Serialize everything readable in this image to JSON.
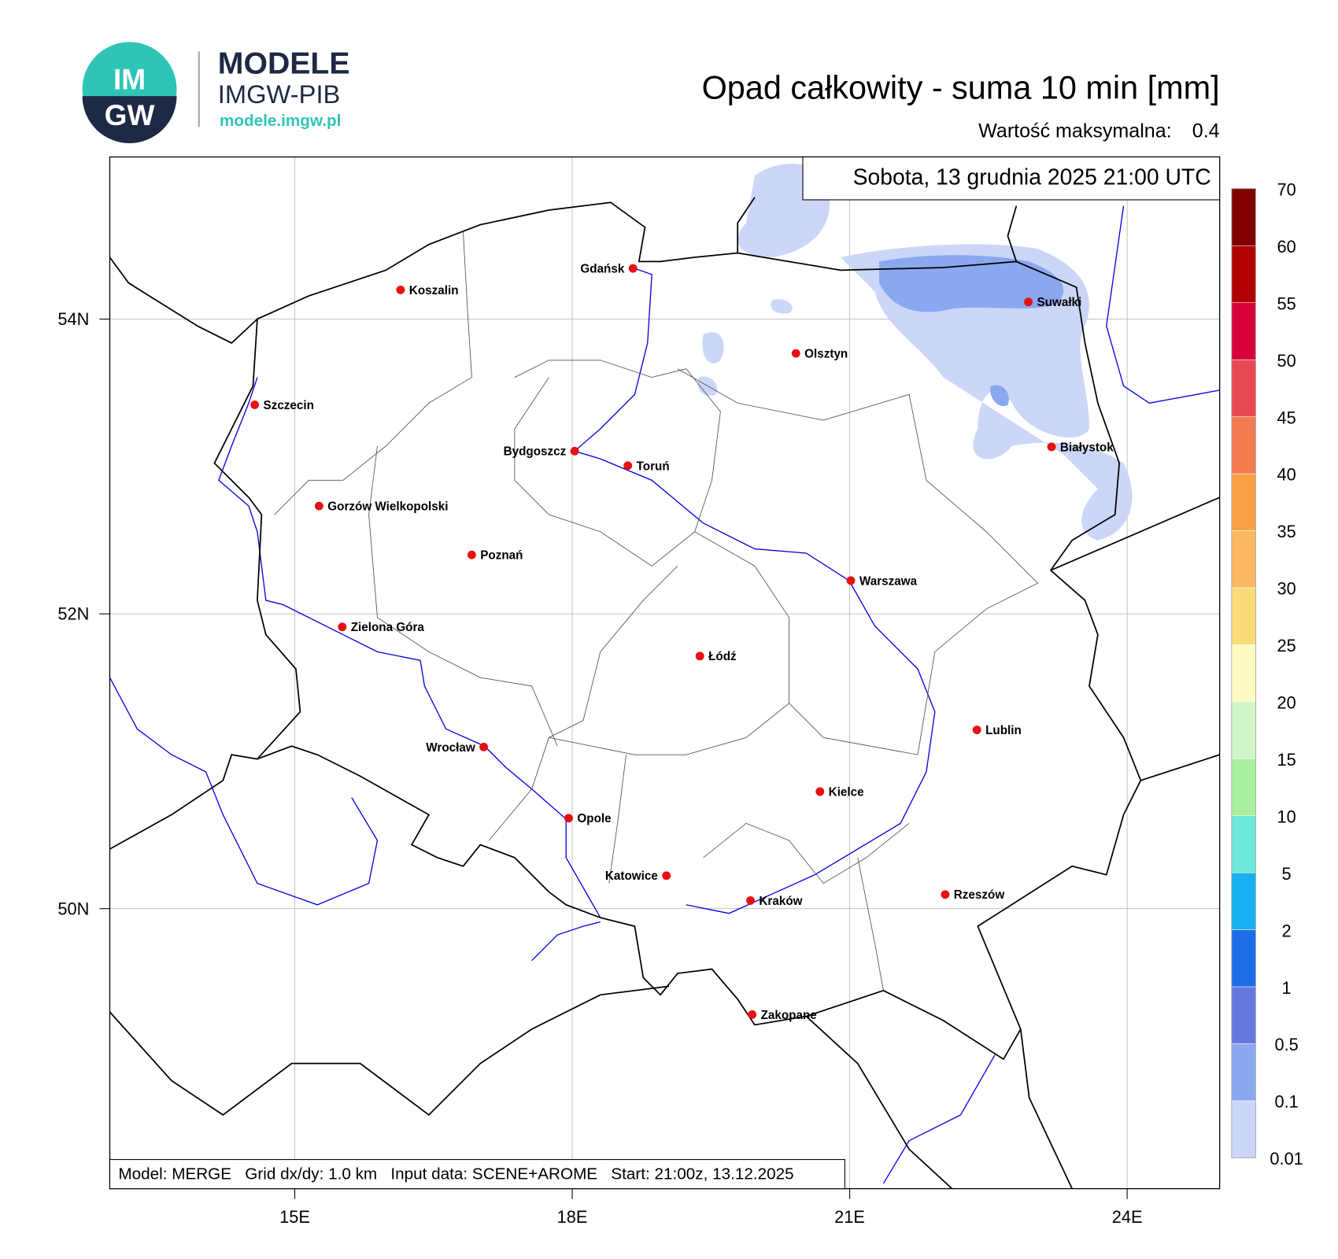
{
  "header": {
    "logo_top": "IM",
    "logo_bottom": "GW",
    "brand": "MODELE",
    "brand_sub": "IMGW-PIB",
    "url": "modele.imgw.pl"
  },
  "title": "Opad całkowity - suma 10 min [mm]",
  "max_label": "Wartość maksymalna:",
  "max_value": 0.4,
  "valid_time": "Sobota, 13 grudnia 2025 21:00 UTC",
  "footer": "Model: MERGE   Grid dx/dy: 1.0 km   Input data: SCENE+AROME   Start: 21:00z, 13.12.2025",
  "map": {
    "xlim": [
      13,
      25
    ],
    "ylim": [
      48.1,
      55.1
    ],
    "xticks": [
      {
        "value": 15,
        "label": "15E"
      },
      {
        "value": 18,
        "label": "18E"
      },
      {
        "value": 21,
        "label": "21E"
      },
      {
        "value": 24,
        "label": "24E"
      }
    ],
    "yticks": [
      {
        "value": 50,
        "label": "50N"
      },
      {
        "value": 52,
        "label": "52N"
      },
      {
        "value": 54,
        "label": "54N"
      }
    ],
    "grid": true,
    "cities": [
      "Koszalin",
      "Gdańsk",
      "Suwałki",
      "Olsztyn",
      "Szczecin",
      "Białystok",
      "Bydgoszcz",
      "Toruń",
      "Gorzów Wielkopolski",
      "Poznań",
      "Warszawa",
      "Zielona Góra",
      "Łódź",
      "Lublin",
      "Wrocław",
      "Kielce",
      "Opole",
      "Katowice",
      "Kraków",
      "Rzeszów",
      "Zakopane"
    ]
  },
  "colorbar": {
    "levels": [
      0.01,
      0.1,
      0.5,
      1,
      2,
      5,
      10,
      15,
      20,
      25,
      30,
      35,
      40,
      45,
      50,
      55,
      60,
      70
    ],
    "colors": [
      "#ccd6f8",
      "#8aa8ee",
      "#6678e0",
      "#1e6ee8",
      "#18b0f0",
      "#6ee8d8",
      "#a8f0a0",
      "#d0f5c8",
      "#fdfbc0",
      "#f8dc78",
      "#fbb860",
      "#f9a045",
      "#f47a50",
      "#e84850",
      "#d8003a",
      "#b00000",
      "#800000"
    ]
  }
}
